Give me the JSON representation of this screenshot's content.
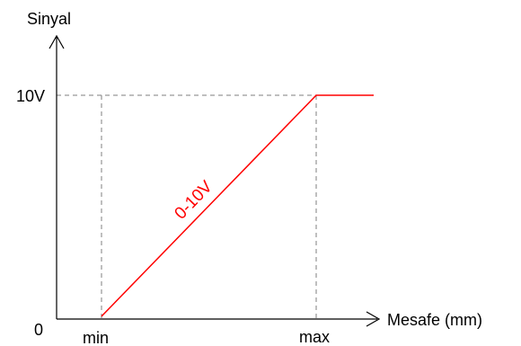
{
  "chart_data": {
    "type": "line",
    "xlabel": "Mesafe (mm)",
    "ylabel": "Sinyal",
    "x_ticks": [
      "min",
      "max"
    ],
    "y_ticks": [
      "0",
      "10V"
    ],
    "series": [
      {
        "label": "0-10V",
        "points": [
          {
            "x": "min",
            "y": 0
          },
          {
            "x": "max",
            "y": 10
          },
          {
            "x": "beyond max",
            "y": 10
          }
        ]
      }
    ],
    "reference_lines": [
      "min",
      "max",
      "10V"
    ],
    "colors": {
      "axis": "#000000",
      "series": "#ff0000",
      "guide": "#7f7f7f"
    }
  }
}
